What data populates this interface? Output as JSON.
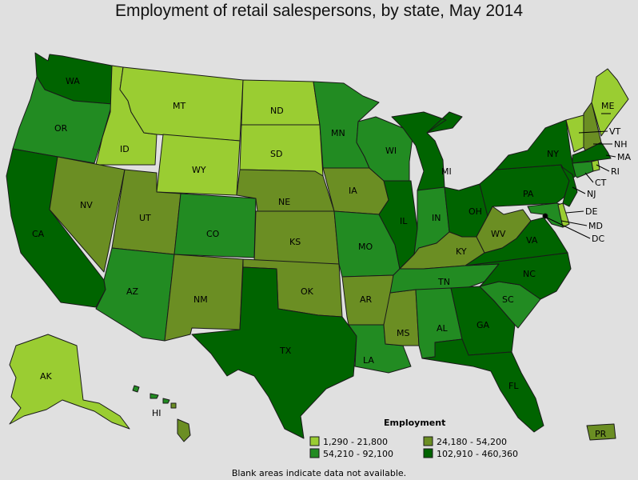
{
  "title": "Employment of retail salespersons, by state, May 2014",
  "colors": {
    "c1": "#9acd32",
    "c2": "#228b22",
    "c3": "#6b8e23",
    "c4": "#006400",
    "background": "#e0e0e0"
  },
  "legend": {
    "title": "Employment",
    "items": [
      {
        "label": "1,290 - 21,800",
        "color": "#9acd32"
      },
      {
        "label": "24,180 - 54,200",
        "color": "#6b8e23"
      },
      {
        "label": "54,210 - 92,100",
        "color": "#228b22"
      },
      {
        "label": "102,910 - 460,360",
        "color": "#006400"
      }
    ]
  },
  "state_labels": {
    "WA": "WA",
    "OR": "OR",
    "CA": "CA",
    "ID": "ID",
    "NV": "NV",
    "MT": "MT",
    "WY": "WY",
    "UT": "UT",
    "AZ": "AZ",
    "CO": "CO",
    "NM": "NM",
    "ND": "ND",
    "SD": "SD",
    "NE": "NE",
    "KS": "KS",
    "OK": "OK",
    "TX": "TX",
    "MN": "MN",
    "IA": "IA",
    "MO": "MO",
    "AR": "AR",
    "LA": "LA",
    "WI": "WI",
    "IL": "IL",
    "MS": "MS",
    "MI": "MI",
    "IN": "IN",
    "KY": "KY",
    "TN": "TN",
    "AL": "AL",
    "OH": "OH",
    "WV": "WV",
    "GA": "GA",
    "FL": "FL",
    "SC": "SC",
    "NC": "NC",
    "VA": "VA",
    "PA": "PA",
    "NY": "NY",
    "ME": "ME",
    "VT": "VT",
    "NH": "NH",
    "MA": "MA",
    "RI": "RI",
    "CT": "CT",
    "NJ": "NJ",
    "DE": "DE",
    "MD": "MD",
    "DC": "DC",
    "AK": "AK",
    "HI": "HI",
    "PR": "PR"
  },
  "note": "Blank areas indicate data not available."
}
